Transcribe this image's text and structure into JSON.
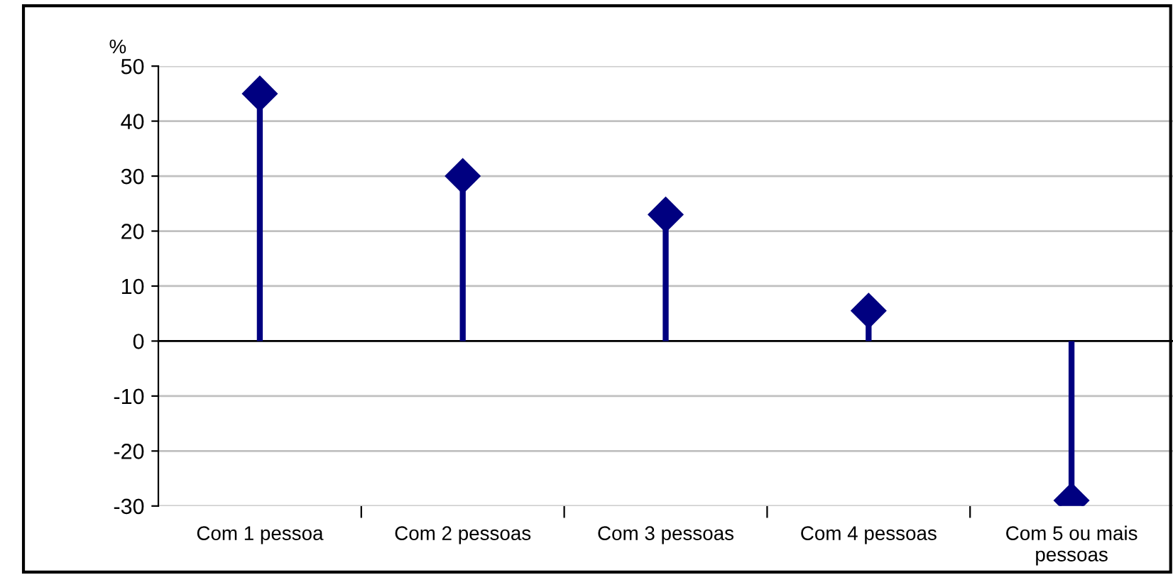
{
  "chart_data": {
    "type": "lollipop",
    "ylabel": "%",
    "categories": [
      "Com 1 pessoa",
      "Com 2 pessoas",
      "Com 3 pessoas",
      "Com 4 pessoas",
      "Com 5 ou mais\npessoas"
    ],
    "values": [
      45,
      30,
      23,
      5.5,
      -29
    ],
    "color": "#000080",
    "marker": "diamond",
    "ylim": [
      -30,
      50
    ],
    "yticks": [
      -30,
      -20,
      -10,
      0,
      10,
      20,
      30,
      40,
      50
    ],
    "grid": "y",
    "legend": false
  }
}
